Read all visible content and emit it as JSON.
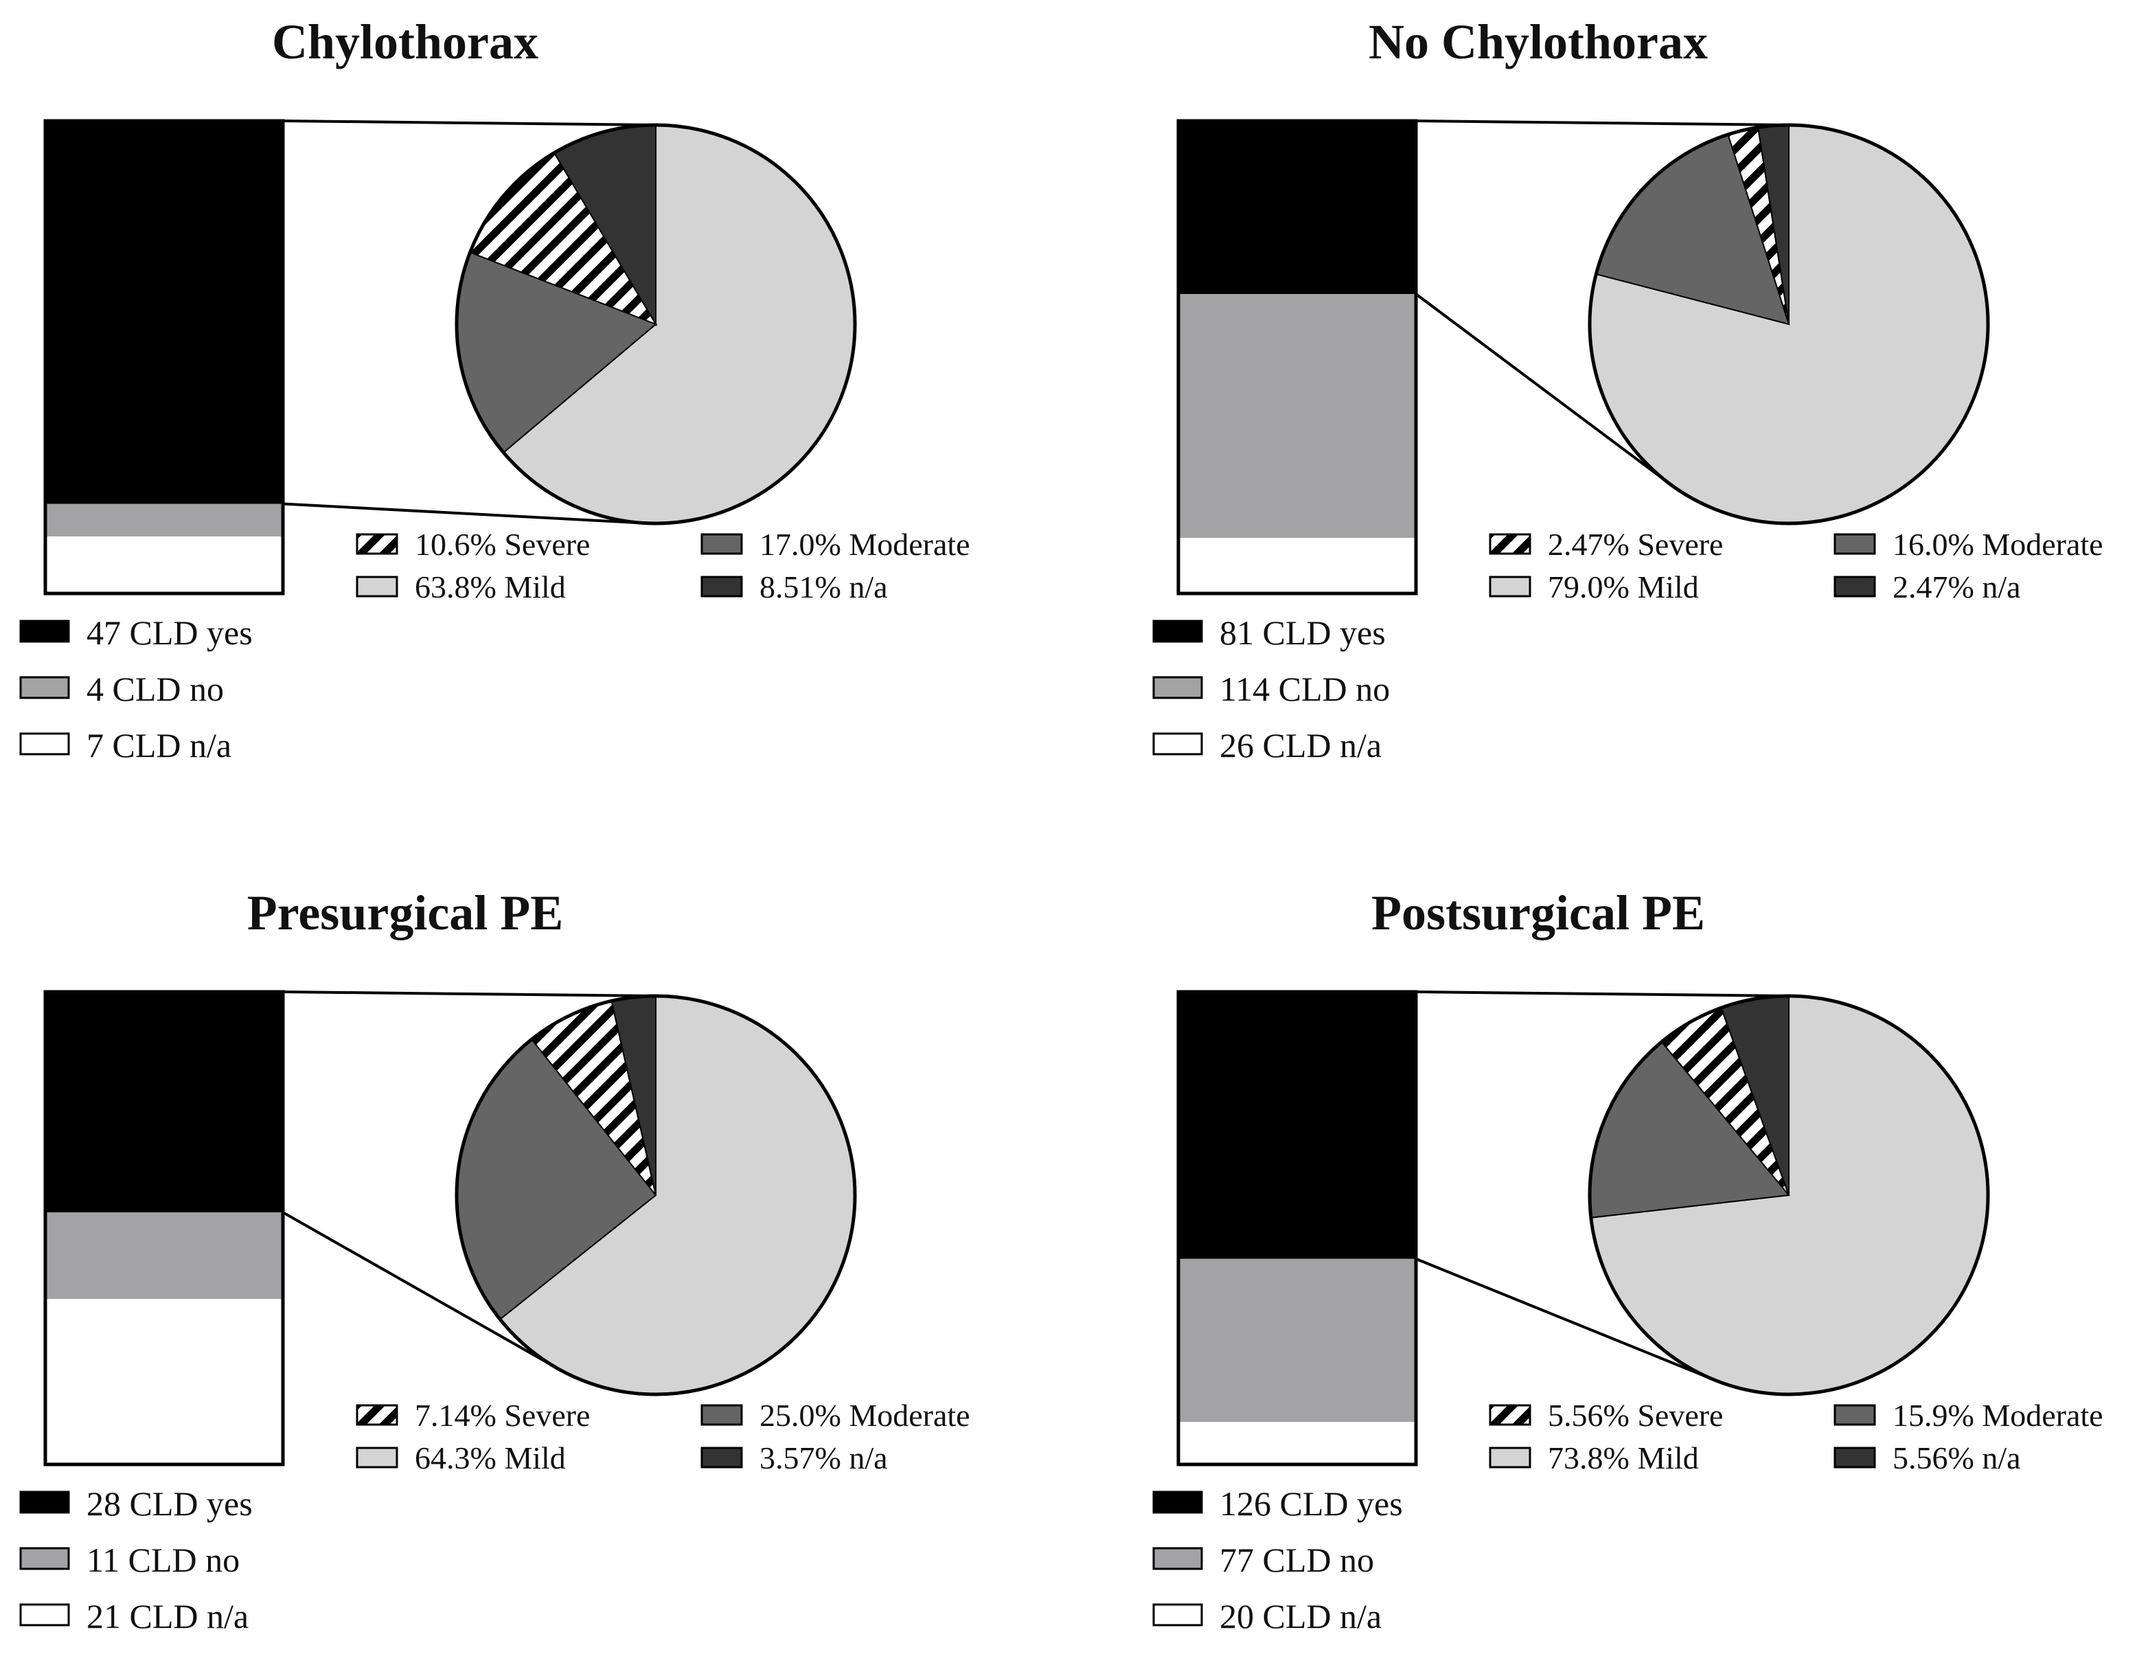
{
  "figure": {
    "colors": {
      "cld_yes": "#000000",
      "cld_no": "#a3a3a6",
      "cld_na": "#ffffff",
      "severe_bg": "#ffffff",
      "severe_stripe": "#000000",
      "moderate": "#656565",
      "mild": "#d4d4d4",
      "na": "#333333",
      "outline": "#000000"
    }
  },
  "chart_data": [
    {
      "id": "chylothorax",
      "type": "bar-of-pie",
      "title": "Chylothorax",
      "bar": {
        "type": "stacked-bar",
        "segments": [
          {
            "key": "cld_yes",
            "value": 47,
            "label": "47 CLD yes"
          },
          {
            "key": "cld_no",
            "value": 4,
            "label": "4 CLD no"
          },
          {
            "key": "cld_na",
            "value": 7,
            "label": "7 CLD n/a"
          }
        ]
      },
      "pie": {
        "type": "pie",
        "slices": [
          {
            "key": "mild",
            "value": 63.8,
            "label": "63.8% Mild"
          },
          {
            "key": "moderate",
            "value": 17.0,
            "label": "17.0% Moderate"
          },
          {
            "key": "severe",
            "value": 10.6,
            "label": "10.6% Severe"
          },
          {
            "key": "na",
            "value": 8.51,
            "label": "8.51% n/a"
          }
        ]
      }
    },
    {
      "id": "no-chylothorax",
      "type": "bar-of-pie",
      "title": "No Chylothorax",
      "bar": {
        "type": "stacked-bar",
        "segments": [
          {
            "key": "cld_yes",
            "value": 81,
            "label": "81 CLD yes"
          },
          {
            "key": "cld_no",
            "value": 114,
            "label": "114 CLD no"
          },
          {
            "key": "cld_na",
            "value": 26,
            "label": "26 CLD n/a"
          }
        ]
      },
      "pie": {
        "type": "pie",
        "slices": [
          {
            "key": "mild",
            "value": 79.0,
            "label": "79.0% Mild"
          },
          {
            "key": "moderate",
            "value": 16.0,
            "label": "16.0% Moderate"
          },
          {
            "key": "severe",
            "value": 2.47,
            "label": "2.47% Severe"
          },
          {
            "key": "na",
            "value": 2.47,
            "label": "2.47% n/a"
          }
        ]
      }
    },
    {
      "id": "presurgical-pe",
      "type": "bar-of-pie",
      "title": "Presurgical PE",
      "bar": {
        "type": "stacked-bar",
        "segments": [
          {
            "key": "cld_yes",
            "value": 28,
            "label": "28 CLD yes"
          },
          {
            "key": "cld_no",
            "value": 11,
            "label": "11 CLD no"
          },
          {
            "key": "cld_na",
            "value": 21,
            "label": "21 CLD n/a"
          }
        ]
      },
      "pie": {
        "type": "pie",
        "slices": [
          {
            "key": "mild",
            "value": 64.3,
            "label": "64.3% Mild"
          },
          {
            "key": "moderate",
            "value": 25.0,
            "label": "25.0% Moderate"
          },
          {
            "key": "severe",
            "value": 7.14,
            "label": "7.14% Severe"
          },
          {
            "key": "na",
            "value": 3.57,
            "label": "3.57% n/a"
          }
        ]
      }
    },
    {
      "id": "postsurgical-pe",
      "type": "bar-of-pie",
      "title": "Postsurgical PE",
      "bar": {
        "type": "stacked-bar",
        "segments": [
          {
            "key": "cld_yes",
            "value": 126,
            "label": "126 CLD yes"
          },
          {
            "key": "cld_no",
            "value": 77,
            "label": "77 CLD no"
          },
          {
            "key": "cld_na",
            "value": 20,
            "label": "20 CLD n/a"
          }
        ]
      },
      "pie": {
        "type": "pie",
        "slices": [
          {
            "key": "mild",
            "value": 73.8,
            "label": "73.8% Mild"
          },
          {
            "key": "moderate",
            "value": 15.9,
            "label": "15.9% Moderate"
          },
          {
            "key": "severe",
            "value": 5.56,
            "label": "5.56% Severe"
          },
          {
            "key": "na",
            "value": 5.56,
            "label": "5.56% n/a"
          }
        ]
      }
    }
  ]
}
